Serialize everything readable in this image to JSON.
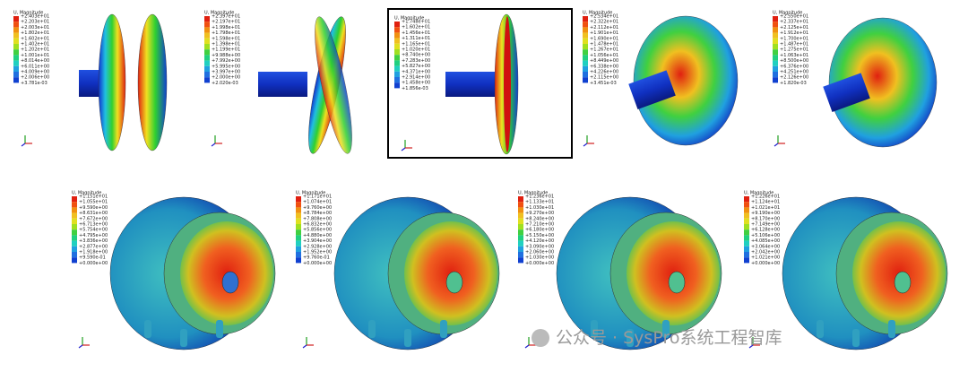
{
  "panels": [
    {
      "legend_title": "U, Magnitude",
      "values": [
        "+2.403e+01",
        "+2.203e+01",
        "+2.003e+01",
        "+1.802e+01",
        "+1.602e+01",
        "+1.402e+01",
        "+1.202e+01",
        "+1.001e+01",
        "+8.014e+00",
        "+6.011e+00",
        "+4.009e+00",
        "+2.006e+00",
        "+3.781e-03"
      ]
    },
    {
      "legend_title": "U, Magnitude",
      "values": [
        "+2.397e+01",
        "+2.197e+01",
        "+1.998e+01",
        "+1.798e+01",
        "+1.598e+01",
        "+1.398e+01",
        "+1.199e+01",
        "+9.988e+00",
        "+7.992e+00",
        "+5.995e+00",
        "+3.997e+00",
        "+2.000e+00",
        "+2.020e-03"
      ]
    },
    {
      "legend_title": "U, Magnitude",
      "values": [
        "+1.748e+01",
        "+1.602e+01",
        "+1.456e+01",
        "+1.311e+01",
        "+1.165e+01",
        "+1.020e+01",
        "+8.740e+00",
        "+7.283e+00",
        "+5.827e+00",
        "+4.371e+00",
        "+2.914e+00",
        "+1.458e+00",
        "+1.856e-03"
      ]
    },
    {
      "legend_title": "U, Magnitude",
      "values": [
        "+2.534e+01",
        "+2.322e+01",
        "+2.112e+01",
        "+1.901e+01",
        "+1.690e+01",
        "+1.478e+01",
        "+1.267e+01",
        "+1.056e+01",
        "+8.449e+00",
        "+6.338e+00",
        "+4.226e+00",
        "+2.115e+00",
        "+3.451e-03"
      ]
    },
    {
      "legend_title": "U, Magnitude",
      "values": [
        "+2.550e+01",
        "+2.337e+01",
        "+2.125e+01",
        "+1.912e+01",
        "+1.700e+01",
        "+1.487e+01",
        "+1.275e+01",
        "+1.063e+01",
        "+8.500e+00",
        "+6.376e+00",
        "+4.251e+00",
        "+2.126e+00",
        "+1.820e-03"
      ]
    },
    {
      "legend_title": "U, Magnitude",
      "values": [
        "+1.151e+01",
        "+1.055e+01",
        "+9.590e+00",
        "+8.631e+00",
        "+7.672e+00",
        "+6.713e+00",
        "+5.754e+00",
        "+4.795e+00",
        "+3.836e+00",
        "+2.877e+00",
        "+1.918e+00",
        "+9.590e-01",
        "+0.000e+00"
      ]
    },
    {
      "legend_title": "U, Magnitude",
      "values": [
        "+1.171e+01",
        "+1.074e+01",
        "+9.760e+00",
        "+8.784e+00",
        "+7.808e+00",
        "+6.832e+00",
        "+5.856e+00",
        "+4.880e+00",
        "+3.904e+00",
        "+2.928e+00",
        "+1.952e+00",
        "+9.760e-01",
        "+0.000e+00"
      ]
    },
    {
      "legend_title": "U, Magnitude",
      "values": [
        "+1.236e+01",
        "+1.133e+01",
        "+1.030e+01",
        "+9.270e+00",
        "+8.240e+00",
        "+7.210e+00",
        "+6.180e+00",
        "+5.150e+00",
        "+4.120e+00",
        "+3.090e+00",
        "+2.060e+00",
        "+1.030e+00",
        "+0.000e+00"
      ]
    },
    {
      "legend_title": "U, Magnitude",
      "values": [
        "+1.226e+01",
        "+1.124e+01",
        "+1.021e+01",
        "+9.190e+00",
        "+8.170e+00",
        "+7.149e+00",
        "+6.128e+00",
        "+5.106e+00",
        "+4.085e+00",
        "+3.064e+00",
        "+2.042e+00",
        "+1.021e+00",
        "+0.000e+00"
      ]
    }
  ],
  "watermark": "公众号 · SysPro系统工程智库"
}
